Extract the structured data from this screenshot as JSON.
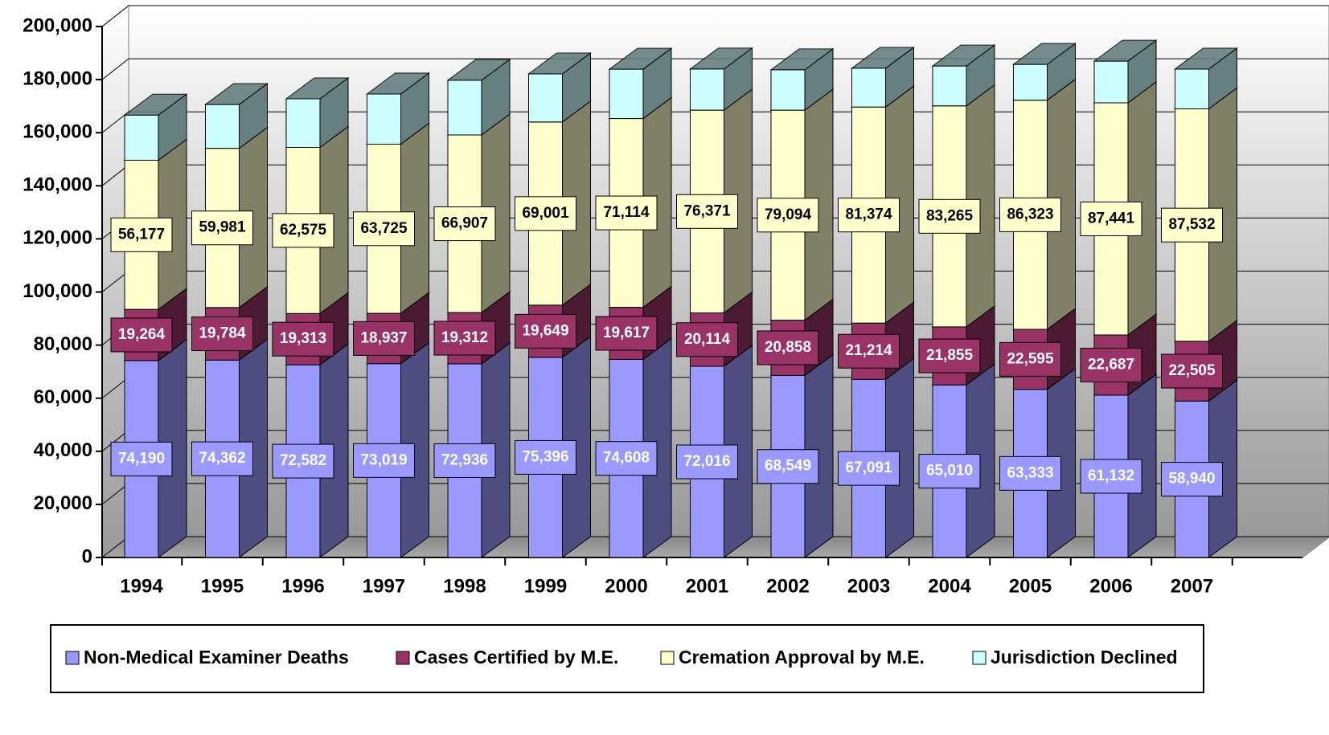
{
  "chart_data": {
    "type": "bar3d_stacked",
    "categories": [
      "1994",
      "1995",
      "1996",
      "1997",
      "1998",
      "1999",
      "2000",
      "2001",
      "2002",
      "2003",
      "2004",
      "2005",
      "2006",
      "2007"
    ],
    "series": [
      {
        "name": "Non-Medical Examiner Deaths",
        "color": "#9999ff",
        "side": "#4d4d80",
        "label_fill": "#9999ff",
        "label_color": "#ffffff",
        "values": [
          74190,
          74362,
          72582,
          73019,
          72936,
          75396,
          74608,
          72016,
          68549,
          67091,
          65010,
          63333,
          61132,
          58940
        ],
        "value_labels": [
          "74,190",
          "74,362",
          "72,582",
          "73,019",
          "72,936",
          "75,396",
          "74,608",
          "72,016",
          "68,549",
          "67,091",
          "65,010",
          "63,333",
          "61,132",
          "58,940"
        ]
      },
      {
        "name": "Cases Certified by M.E.",
        "color": "#993366",
        "side": "#4d1a33",
        "label_fill": "#993366",
        "label_color": "#ffffff",
        "values": [
          19264,
          19784,
          19313,
          18937,
          19312,
          19649,
          19617,
          20114,
          20858,
          21214,
          21855,
          22595,
          22687,
          22505
        ],
        "value_labels": [
          "19,264",
          "19,784",
          "19,313",
          "18,937",
          "19,312",
          "19,649",
          "19,617",
          "20,114",
          "20,858",
          "21,214",
          "21,855",
          "22,595",
          "22,687",
          "22,505"
        ]
      },
      {
        "name": "Cremation Approval by M.E.",
        "color": "#ffffcc",
        "side": "#808066",
        "label_fill": "#ffffcc",
        "label_color": "#000000",
        "values": [
          56177,
          59981,
          62575,
          63725,
          66907,
          69001,
          71114,
          76371,
          79094,
          81374,
          83265,
          86323,
          87441,
          87532
        ],
        "value_labels": [
          "56,177",
          "59,981",
          "62,575",
          "63,725",
          "66,907",
          "69,001",
          "71,114",
          "76,371",
          "79,094",
          "81,374",
          "83,265",
          "86,323",
          "87,441",
          "87,532"
        ]
      },
      {
        "name": "Jurisdiction Declined",
        "color": "#ccffff",
        "side": "#668080",
        "values": [
          17000,
          16500,
          18300,
          18900,
          20600,
          18100,
          18600,
          15500,
          15200,
          14600,
          15000,
          13500,
          15700,
          15000
        ]
      }
    ],
    "ylim": [
      0,
      200000
    ],
    "yticks": [
      0,
      {
        "value": 20000,
        "label": "20,000"
      },
      {
        "value": 40000,
        "label": "40,000"
      },
      {
        "value": 60000,
        "label": "60,000"
      },
      {
        "value": 80000,
        "label": "80,000"
      },
      {
        "value": 100000,
        "label": "100,000"
      },
      {
        "value": 120000,
        "label": "120,000"
      },
      {
        "value": 140000,
        "label": "140,000"
      },
      {
        "value": 160000,
        "label": "160,000"
      },
      {
        "value": 180000,
        "label": "180,000"
      },
      {
        "value": 200000,
        "label": "200,000"
      }
    ],
    "grid": true,
    "legend": "bottom"
  }
}
